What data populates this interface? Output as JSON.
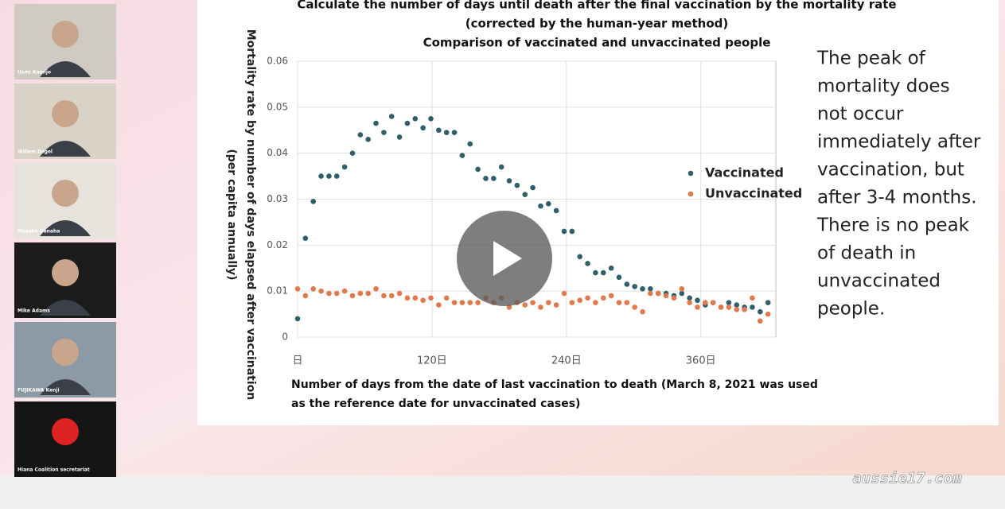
{
  "chart_data": {
    "type": "scatter",
    "title": [
      "Calculate the number of days until death after the final vaccination by the mortality rate",
      "(corrected by the human-year method)",
      "Comparison of vaccinated and unvaccinated people"
    ],
    "ylabel": [
      "Mortality rate by number of days elapsed after vaccination",
      "(per capita annually)"
    ],
    "xlabel": [
      "Number of days from the date of last vaccination to death (March 8, 2021 was used",
      "as the reference date for unvaccinated cases)"
    ],
    "x": [
      0,
      7,
      14,
      21,
      28,
      35,
      42,
      49,
      56,
      63,
      70,
      77,
      84,
      91,
      98,
      105,
      112,
      119,
      126,
      133,
      140,
      147,
      154,
      161,
      168,
      175,
      182,
      189,
      196,
      203,
      210,
      217,
      224,
      231,
      238,
      245,
      252,
      259,
      266,
      273,
      280,
      287,
      294,
      301,
      308,
      315,
      322,
      329,
      336,
      343,
      350,
      357,
      364,
      371,
      378,
      385,
      392,
      399,
      406,
      413,
      420
    ],
    "series": [
      {
        "name": "Vaccinated",
        "color": "#2f5f6b",
        "values": [
          0.004,
          0.0215,
          0.0295,
          0.035,
          0.035,
          0.035,
          0.037,
          0.04,
          0.044,
          0.043,
          0.0465,
          0.0445,
          0.048,
          0.0435,
          0.0465,
          0.0475,
          0.0455,
          0.0475,
          0.045,
          0.0445,
          0.0445,
          0.0395,
          0.042,
          0.0365,
          0.0345,
          0.0345,
          0.037,
          0.034,
          0.033,
          0.031,
          0.0325,
          0.0285,
          0.029,
          0.0275,
          0.023,
          0.023,
          0.0175,
          0.016,
          0.014,
          0.014,
          0.015,
          0.013,
          0.0115,
          0.011,
          0.0105,
          0.0105,
          0.0095,
          0.0095,
          0.009,
          0.0095,
          0.0085,
          0.008,
          0.007,
          0.0075,
          0.0065,
          0.0075,
          0.007,
          0.0065,
          0.0065,
          0.0055,
          0.0075
        ]
      },
      {
        "name": "Unvaccinated",
        "color": "#e07a4c",
        "values": [
          0.0105,
          0.009,
          0.0105,
          0.01,
          0.0095,
          0.0095,
          0.01,
          0.009,
          0.0095,
          0.0095,
          0.0105,
          0.009,
          0.009,
          0.0095,
          0.0085,
          0.0085,
          0.008,
          0.0085,
          0.007,
          0.0085,
          0.0075,
          0.0075,
          0.0075,
          0.0075,
          0.0085,
          0.0075,
          0.0085,
          0.0065,
          0.0075,
          0.007,
          0.0075,
          0.0065,
          0.0075,
          0.007,
          0.0095,
          0.0075,
          0.008,
          0.0085,
          0.0075,
          0.0085,
          0.009,
          0.0075,
          0.0075,
          0.0065,
          0.0055,
          0.0095,
          0.0095,
          0.009,
          0.0085,
          0.0105,
          0.0075,
          0.0065,
          0.0075,
          0.0075,
          0.0065,
          0.0065,
          0.006,
          0.006,
          0.0085,
          0.0035,
          0.005
        ]
      }
    ],
    "xlim": [
      0,
      427
    ],
    "xticks": [
      {
        "value": 0,
        "label": "日"
      },
      {
        "value": 120,
        "label": "120日"
      },
      {
        "value": 240,
        "label": "240日"
      },
      {
        "value": 360,
        "label": "360日"
      }
    ],
    "ylim": [
      0,
      0.06
    ],
    "yticks": [
      0,
      0.01,
      0.02,
      0.03,
      0.04,
      0.05,
      0.06
    ],
    "grid": true
  },
  "slide_text": [
    "The peak of",
    "mortality does",
    "not occur",
    "immediately after",
    "vaccination, but",
    "after 3-4 months.",
    "There is no peak",
    "of death in",
    "unvaccinated",
    "people."
  ],
  "participants": [
    "Usmi Kamijo",
    "Willem Engel",
    "Masako Ganaha",
    "Mike Adams",
    "FUJIKAWA Kenji",
    "Hiana Coalition secretariat"
  ],
  "watermark": "aussie17.com"
}
